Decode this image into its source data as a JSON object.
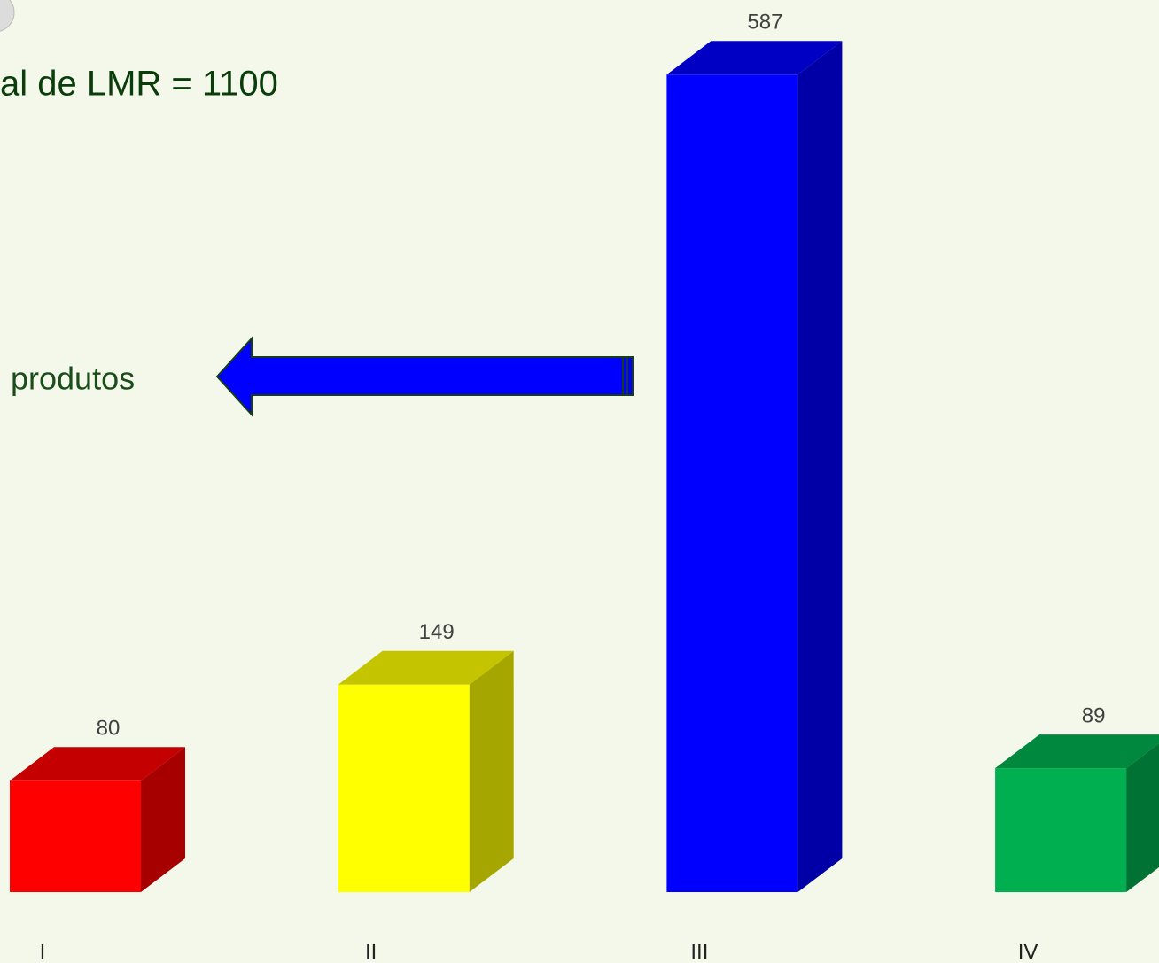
{
  "chart_data": {
    "type": "bar3d",
    "title": "al de LMR = 1100",
    "annotations": [
      "produtos"
    ],
    "categories": [
      "I",
      "II",
      "III",
      "IV"
    ],
    "values": [
      80,
      149,
      587,
      89
    ],
    "colors": [
      "#ff0000",
      "#ffff00",
      "#0000ff",
      "#00b050"
    ],
    "ylim": [
      0,
      640
    ]
  }
}
